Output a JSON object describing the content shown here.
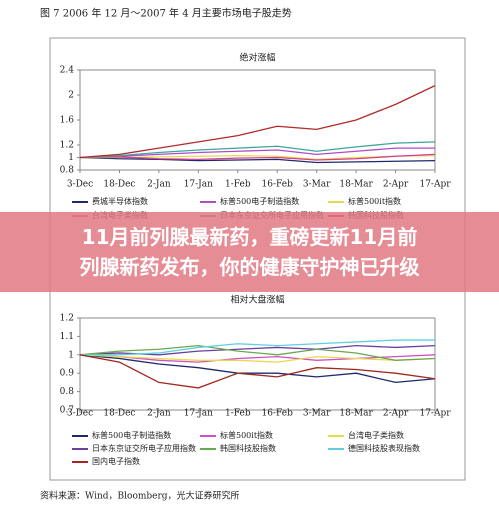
{
  "figure_title": "图 7 2006 年 12 月～2007 年 4 月主要市场电子股走势",
  "source": "资料来源：Wind，Bloomberg，光大证券研究所",
  "banner": {
    "lines": [
      "11月前列腺最新药，重磅更新11月前",
      "列腺新药发布，你的健康守护神已升级"
    ]
  },
  "chart_data": [
    {
      "type": "line",
      "title": "绝对涨幅",
      "categories": [
        "3-Dec",
        "18-Dec",
        "2-Jan",
        "17-Jan",
        "1-Feb",
        "16-Feb",
        "3-Mar",
        "18-Mar",
        "2-Apr",
        "17-Apr"
      ],
      "ylim": [
        0.8,
        2.4
      ],
      "yticks": [
        0.8,
        1,
        1.2,
        1.6,
        2,
        2.4
      ],
      "series": [
        {
          "name": "费城半导体指数",
          "color": "#1f2a6b",
          "values": [
            1,
            0.98,
            0.97,
            0.95,
            0.96,
            0.97,
            0.92,
            0.93,
            0.94,
            0.95
          ]
        },
        {
          "name": "标普500电子制造指数",
          "color": "#b04bc8",
          "values": [
            1,
            1.02,
            1.05,
            1.08,
            1.1,
            1.12,
            1.05,
            1.1,
            1.15,
            1.15
          ]
        },
        {
          "name": "标普500it指数",
          "color": "#e8d84a",
          "values": [
            1,
            1.0,
            1.01,
            1.02,
            1.03,
            1.02,
            0.97,
            1.0,
            1.02,
            1.03
          ]
        },
        {
          "name": "台湾电子类指数",
          "color": "#d0409a",
          "values": [
            1,
            1.01,
            0.98,
            0.97,
            0.99,
            1.0,
            0.96,
            0.98,
            1.02,
            1.05
          ]
        },
        {
          "name": "日本东京证交所电子应用指数",
          "color": "#3aa79a",
          "values": [
            1,
            1.03,
            1.08,
            1.12,
            1.15,
            1.18,
            1.1,
            1.17,
            1.23,
            1.25
          ]
        },
        {
          "name": "韩国科技股指数",
          "color": "#b22a2a",
          "values": [
            1,
            1.05,
            1.15,
            1.25,
            1.35,
            1.5,
            1.45,
            1.6,
            1.85,
            2.15
          ]
        }
      ]
    },
    {
      "type": "line",
      "title": "相对大盘涨幅",
      "categories": [
        "3-Dec",
        "18-Dec",
        "2-Jan",
        "17-Jan",
        "1-Feb",
        "16-Feb",
        "3-Mar",
        "18-Mar",
        "2-Apr",
        "17-Apr"
      ],
      "ylim": [
        0.7,
        1.2
      ],
      "yticks": [
        0.7,
        0.8,
        0.9,
        1,
        1.1,
        1.2
      ],
      "series": [
        {
          "name": "标普500电子制造指数",
          "color": "#1f2a6b",
          "values": [
            1,
            0.98,
            0.95,
            0.93,
            0.9,
            0.9,
            0.88,
            0.9,
            0.85,
            0.87
          ]
        },
        {
          "name": "标普500it指数",
          "color": "#d050c8",
          "values": [
            1,
            0.99,
            0.97,
            0.96,
            0.98,
            0.99,
            0.97,
            0.98,
            0.99,
            1.0
          ]
        },
        {
          "name": "台湾电子类指数",
          "color": "#e8d84a",
          "values": [
            1,
            0.99,
            0.98,
            0.97,
            0.97,
            0.96,
            0.99,
            0.98,
            0.97,
            0.98
          ]
        },
        {
          "name": "日本东京证交所电子应用指数",
          "color": "#6a3fa0",
          "values": [
            1,
            1.01,
            1.0,
            1.02,
            1.03,
            1.04,
            1.03,
            1.05,
            1.04,
            1.05
          ]
        },
        {
          "name": "韩国科技股指数",
          "color": "#6aa84f",
          "values": [
            1,
            1.02,
            1.03,
            1.05,
            1.02,
            1.0,
            1.03,
            1.01,
            0.97,
            0.98
          ]
        },
        {
          "name": "德国科技股表现指数",
          "color": "#5fd0e0",
          "values": [
            1,
            1.0,
            1.01,
            1.04,
            1.06,
            1.05,
            1.06,
            1.07,
            1.08,
            1.08
          ]
        },
        {
          "name": "国内电子指数",
          "color": "#a0281e",
          "values": [
            1,
            0.96,
            0.85,
            0.82,
            0.9,
            0.88,
            0.93,
            0.92,
            0.9,
            0.87
          ]
        }
      ]
    }
  ]
}
